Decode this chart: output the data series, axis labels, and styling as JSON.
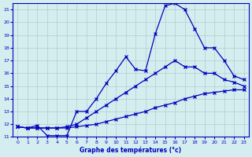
{
  "xlabel": "Graphe des températures (°c)",
  "bg_color": "#d4eef0",
  "line_color": "#0000bb",
  "grid_color": "#b0cccc",
  "xlim": [
    -0.5,
    23.5
  ],
  "ylim": [
    11,
    21.5
  ],
  "xticks": [
    0,
    1,
    2,
    3,
    4,
    5,
    6,
    7,
    8,
    9,
    10,
    11,
    12,
    13,
    14,
    15,
    16,
    17,
    18,
    19,
    20,
    21,
    22,
    23
  ],
  "yticks": [
    11,
    12,
    13,
    14,
    15,
    16,
    17,
    18,
    19,
    20,
    21
  ],
  "line1_x": [
    0,
    1,
    2,
    3,
    4,
    5,
    6,
    7,
    8,
    9,
    10,
    11,
    12,
    13,
    14,
    15,
    16,
    17,
    18,
    19,
    20,
    21,
    22,
    23
  ],
  "line1_y": [
    11.8,
    11.7,
    11.9,
    11.1,
    11.1,
    11.1,
    13.0,
    13.0,
    14.0,
    15.2,
    16.2,
    17.3,
    16.3,
    16.2,
    19.1,
    21.3,
    21.5,
    21.0,
    19.5,
    18.0,
    18.0,
    17.0,
    15.8,
    15.5
  ],
  "line2_x": [
    0,
    1,
    2,
    3,
    4,
    5,
    6,
    7,
    8,
    9,
    10,
    11,
    12,
    13,
    14,
    15,
    16,
    17,
    18,
    19,
    20,
    21,
    22,
    23
  ],
  "line2_y": [
    11.8,
    11.7,
    11.7,
    11.7,
    11.7,
    11.8,
    12.0,
    12.5,
    13.0,
    13.5,
    14.0,
    14.5,
    15.0,
    15.5,
    16.0,
    16.5,
    17.0,
    16.5,
    16.5,
    16.0,
    16.0,
    15.5,
    15.3,
    15.0
  ],
  "line3_x": [
    0,
    1,
    2,
    3,
    4,
    5,
    6,
    7,
    8,
    9,
    10,
    11,
    12,
    13,
    14,
    15,
    16,
    17,
    18,
    19,
    20,
    21,
    22,
    23
  ],
  "line3_y": [
    11.8,
    11.7,
    11.7,
    11.7,
    11.7,
    11.7,
    11.8,
    11.9,
    12.0,
    12.2,
    12.4,
    12.6,
    12.8,
    13.0,
    13.3,
    13.5,
    13.7,
    14.0,
    14.2,
    14.4,
    14.5,
    14.6,
    14.7,
    14.7
  ]
}
